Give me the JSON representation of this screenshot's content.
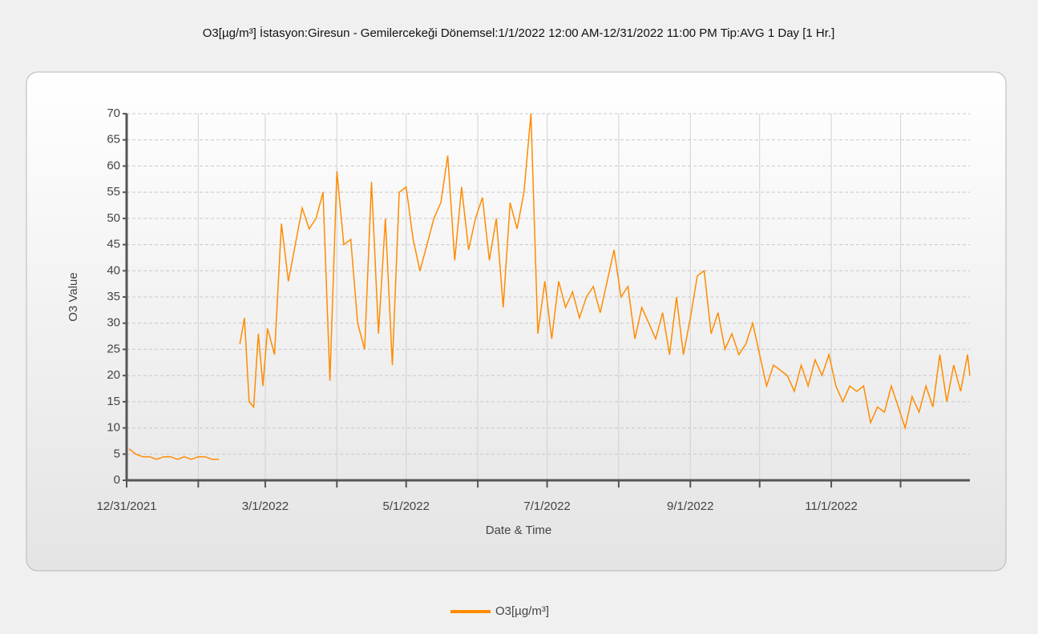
{
  "chart_data": {
    "type": "line",
    "title": "O3[µg/m³] İstasyon:Giresun - Gemilercekeği  Dönemsel:1/1/2022 12:00 AM-12/31/2022 11:00 PM  Tip:AVG 1 Day [1 Hr.]",
    "xlabel": "Date & Time",
    "ylabel": "O3 Value",
    "x": [
      "2022-01-01",
      "2022-01-04",
      "2022-01-07",
      "2022-01-10",
      "2022-01-13",
      "2022-01-16",
      "2022-01-19",
      "2022-01-22",
      "2022-01-25",
      "2022-01-28",
      "2022-01-31",
      "2022-02-03",
      "2022-02-06",
      "2022-02-09",
      "2022-02-13",
      "2022-02-18",
      "2022-02-20",
      "2022-02-22",
      "2022-02-24",
      "2022-02-26",
      "2022-02-28",
      "2022-03-02",
      "2022-03-05",
      "2022-03-08",
      "2022-03-11",
      "2022-03-14",
      "2022-03-17",
      "2022-03-20",
      "2022-03-23",
      "2022-03-26",
      "2022-03-29",
      "2022-04-01",
      "2022-04-04",
      "2022-04-07",
      "2022-04-10",
      "2022-04-13",
      "2022-04-16",
      "2022-04-19",
      "2022-04-22",
      "2022-04-25",
      "2022-04-28",
      "2022-05-01",
      "2022-05-04",
      "2022-05-07",
      "2022-05-10",
      "2022-05-13",
      "2022-05-16",
      "2022-05-19",
      "2022-05-22",
      "2022-05-25",
      "2022-05-28",
      "2022-05-31",
      "2022-06-03",
      "2022-06-06",
      "2022-06-09",
      "2022-06-12",
      "2022-06-15",
      "2022-06-18",
      "2022-06-21",
      "2022-06-24",
      "2022-06-27",
      "2022-06-30",
      "2022-07-03",
      "2022-07-06",
      "2022-07-09",
      "2022-07-12",
      "2022-07-15",
      "2022-07-18",
      "2022-07-21",
      "2022-07-24",
      "2022-07-27",
      "2022-07-30",
      "2022-08-02",
      "2022-08-05",
      "2022-08-08",
      "2022-08-11",
      "2022-08-14",
      "2022-08-17",
      "2022-08-20",
      "2022-08-23",
      "2022-08-26",
      "2022-08-29",
      "2022-09-01",
      "2022-09-04",
      "2022-09-07",
      "2022-09-10",
      "2022-09-13",
      "2022-09-16",
      "2022-09-19",
      "2022-09-22",
      "2022-09-25",
      "2022-09-28",
      "2022-10-01",
      "2022-10-04",
      "2022-10-07",
      "2022-10-10",
      "2022-10-13",
      "2022-10-16",
      "2022-10-19",
      "2022-10-22",
      "2022-10-25",
      "2022-10-28",
      "2022-10-31",
      "2022-11-03",
      "2022-11-06",
      "2022-11-09",
      "2022-11-12",
      "2022-11-15",
      "2022-11-18",
      "2022-11-21",
      "2022-11-24",
      "2022-11-27",
      "2022-11-30",
      "2022-12-03",
      "2022-12-06",
      "2022-12-09",
      "2022-12-12",
      "2022-12-15",
      "2022-12-18",
      "2022-12-21",
      "2022-12-24",
      "2022-12-27",
      "2022-12-30",
      "2022-12-31"
    ],
    "series": [
      {
        "name": "O3[µg/m³]",
        "color": "#ff8c00",
        "values": [
          6,
          5,
          4.5,
          4.5,
          4,
          4.5,
          4.5,
          4,
          4.5,
          4,
          4.5,
          4.5,
          4,
          4,
          null,
          26,
          31,
          15,
          14,
          28,
          18,
          29,
          24,
          49,
          38,
          45,
          52,
          48,
          50,
          55,
          19,
          59,
          45,
          46,
          30,
          25,
          57,
          28,
          50,
          22,
          55,
          56,
          46,
          40,
          45,
          50,
          53,
          62,
          42,
          56,
          44,
          50,
          54,
          42,
          50,
          33,
          53,
          48,
          55,
          70,
          28,
          38,
          27,
          38,
          33,
          36,
          31,
          35,
          37,
          32,
          38,
          44,
          35,
          37,
          27,
          33,
          30,
          27,
          32,
          24,
          35,
          24,
          31,
          39,
          40,
          28,
          32,
          25,
          28,
          24,
          26,
          30,
          24,
          18,
          22,
          21,
          20,
          17,
          22,
          18,
          23,
          20,
          24,
          18,
          15,
          18,
          17,
          18,
          11,
          14,
          13,
          18,
          14,
          10,
          16,
          13,
          18,
          14,
          24,
          15,
          22,
          17,
          24,
          20
        ]
      }
    ],
    "xlim": [
      "2021-12-31",
      "2022-12-31"
    ],
    "xticks": [
      {
        "value": "2021-12-31",
        "label": "12/31/2021"
      },
      {
        "value": "2022-01-31",
        "label": null
      },
      {
        "value": "2022-03-01",
        "label": "3/1/2022"
      },
      {
        "value": "2022-04-01",
        "label": null
      },
      {
        "value": "2022-05-01",
        "label": "5/1/2022"
      },
      {
        "value": "2022-06-01",
        "label": null
      },
      {
        "value": "2022-07-01",
        "label": "7/1/2022"
      },
      {
        "value": "2022-08-01",
        "label": null
      },
      {
        "value": "2022-09-01",
        "label": "9/1/2022"
      },
      {
        "value": "2022-10-01",
        "label": null
      },
      {
        "value": "2022-11-01",
        "label": "11/1/2022"
      },
      {
        "value": "2022-12-01",
        "label": null
      }
    ],
    "ylim": [
      0,
      70
    ],
    "yticks": [
      0,
      5,
      10,
      15,
      20,
      25,
      30,
      35,
      40,
      45,
      50,
      55,
      60,
      65,
      70
    ],
    "grid": true,
    "legend": "bottom"
  }
}
